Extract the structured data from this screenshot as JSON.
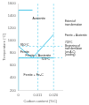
{
  "chart_data": {
    "type": "line",
    "xlabel": "Carbon content (%C)",
    "ylabel": "Temperature (°C)",
    "xlim": [
      0,
      0.025
    ],
    "ylim": [
      200,
      1600
    ],
    "xticks": [
      0,
      0.011,
      {
        "value": 0.02,
        "label": "0.020"
      }
    ],
    "yticks": [
      200,
      400,
      600,
      800,
      1000,
      1200,
      1400,
      1600
    ],
    "grid": false,
    "series": [
      {
        "x": [
          0.0,
          0.0
        ],
        "values": [
          200,
          723
        ],
        "color": "#4dc8e8",
        "line_style": "solid"
      },
      {
        "x": [
          0.0,
          0.0
        ],
        "values": [
          910,
          1493
        ],
        "color": "#4dc8e8",
        "line_style": "solid"
      },
      {
        "x": [
          0.0,
          0.008
        ],
        "values": [
          1493,
          1493
        ],
        "color": "#4dc8e8",
        "line_style": "solid"
      },
      {
        "x": [
          0.0,
          0.008
        ],
        "values": [
          910,
          723
        ],
        "color": "#4dc8e8",
        "line_style": "solid"
      },
      {
        "x": [
          0.008,
          0.02
        ],
        "values": [
          723,
          1100
        ],
        "color": "#4dc8e8",
        "line_style": "solid"
      },
      {
        "x": [
          0.0,
          0.02
        ],
        "values": [
          723,
          723
        ],
        "color": "#4dc8e8",
        "line_style": "solid"
      },
      {
        "x": [
          0.011,
          0.011
        ],
        "values": [
          200,
          1600
        ],
        "color": "#4dc8e8",
        "line_style": "dashed"
      },
      {
        "x": [
          0.02,
          0.02
        ],
        "values": [
          200,
          1600
        ],
        "color": "#4dc8e8",
        "line_style": "dashed"
      },
      {
        "x": [
          0,
          0.025
        ],
        "values": [
          910,
          910
        ],
        "color": "#4dc8e8",
        "line_style": "dashed"
      },
      {
        "x": [
          0,
          0.025
        ],
        "values": [
          723,
          723
        ],
        "color": "#4dc8e8",
        "line_style": "dashed"
      }
    ],
    "annotations": [
      {
        "text": "Austenite",
        "x": 0.008,
        "y": 1350
      },
      {
        "text": "Ferrite",
        "x": 0.001,
        "y": 820
      },
      {
        "text": "Ferrite + Austenite",
        "x": 0.004,
        "y": 790
      },
      {
        "text": "Ferrite + Fe₃C",
        "x": 0.003,
        "y": 450
      },
      {
        "text": "910°C",
        "x": 0.001,
        "y": 925
      },
      {
        "text": "723°C",
        "x": 0.013,
        "y": 710
      }
    ],
    "side_annotations": [
      {
        "text": "Extent of\ntransformation",
        "y": 1280
      },
      {
        "text": "Ferrite + Austenite",
        "y": 1080
      },
      {
        "text": "723°C",
        "y": 970
      },
      {
        "text": "Beginning of\ntransformation\n(on A₃C)\n(cooling)",
        "y": 850
      }
    ]
  }
}
